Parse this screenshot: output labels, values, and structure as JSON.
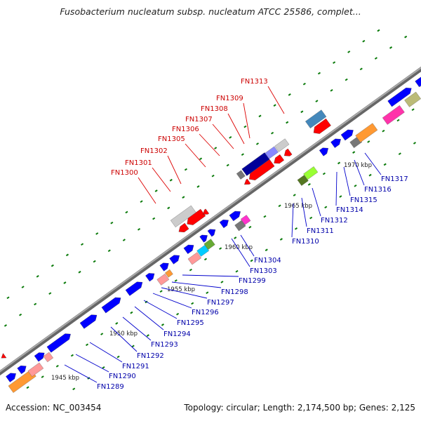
{
  "title": "Fusobacterium nucleatum subsp. nucleatum ATCC 25586, complet...",
  "footer": {
    "accession": "Accession: NC_003454",
    "summary": "Topology: circular; Length: 2,174,500 bp; Genes: 2,125"
  },
  "colors": {
    "backbone": "#777777",
    "forward_gene": "#0000ff",
    "label_top": "#cc0000",
    "label_bottom": "#0000aa",
    "tick": "#006600"
  },
  "scale_labels": [
    "1945 kbp",
    "1950 kbp",
    "1955 kbp",
    "1960 kbp",
    "1965 kbp",
    "1970 kbp"
  ],
  "genes_top": [
    "FN1300",
    "FN1301",
    "FN1302",
    "FN1305",
    "FN1306",
    "FN1307",
    "FN1308",
    "FN1309",
    "FN1313"
  ],
  "genes_bottom": [
    "FN1289",
    "FN1290",
    "FN1291",
    "FN1292",
    "FN1293",
    "FN1294",
    "FN1295",
    "FN1296",
    "FN1297",
    "FN1298",
    "FN1299",
    "FN1303",
    "FN1304",
    "FN1310",
    "FN1311",
    "FN1312",
    "FN1314",
    "FN1315",
    "FN1316",
    "FN1317"
  ]
}
